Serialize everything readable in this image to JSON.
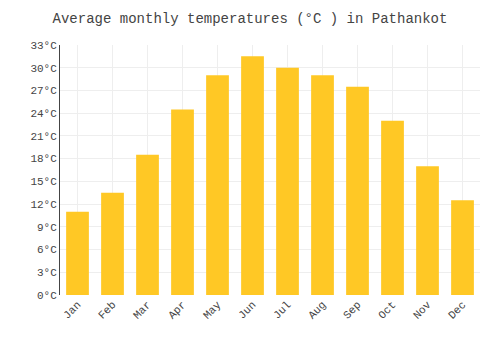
{
  "chart_data": {
    "type": "bar",
    "title": "Average monthly temperatures (°C ) in Pathankot",
    "categories": [
      "Jan",
      "Feb",
      "Mar",
      "Apr",
      "May",
      "Jun",
      "Jul",
      "Aug",
      "Sep",
      "Oct",
      "Nov",
      "Dec"
    ],
    "values": [
      11,
      13.5,
      18.5,
      24.5,
      29,
      31.5,
      30,
      29,
      27.5,
      23,
      17,
      12.5
    ],
    "color": "#FFC825",
    "ylim": [
      0,
      33
    ],
    "yticks": [
      {
        "value": 0,
        "label": "0°C"
      },
      {
        "value": 3,
        "label": "3°C"
      },
      {
        "value": 6,
        "label": "6°C"
      },
      {
        "value": 9,
        "label": "9°C"
      },
      {
        "value": 12,
        "label": "12°C"
      },
      {
        "value": 15,
        "label": "15°C"
      },
      {
        "value": 18,
        "label": "18°C"
      },
      {
        "value": 21,
        "label": "21°C"
      },
      {
        "value": 24,
        "label": "24°C"
      },
      {
        "value": 27,
        "label": "27°C"
      },
      {
        "value": 30,
        "label": "30°C"
      },
      {
        "value": 33,
        "label": "33°C"
      }
    ],
    "grid": true
  }
}
